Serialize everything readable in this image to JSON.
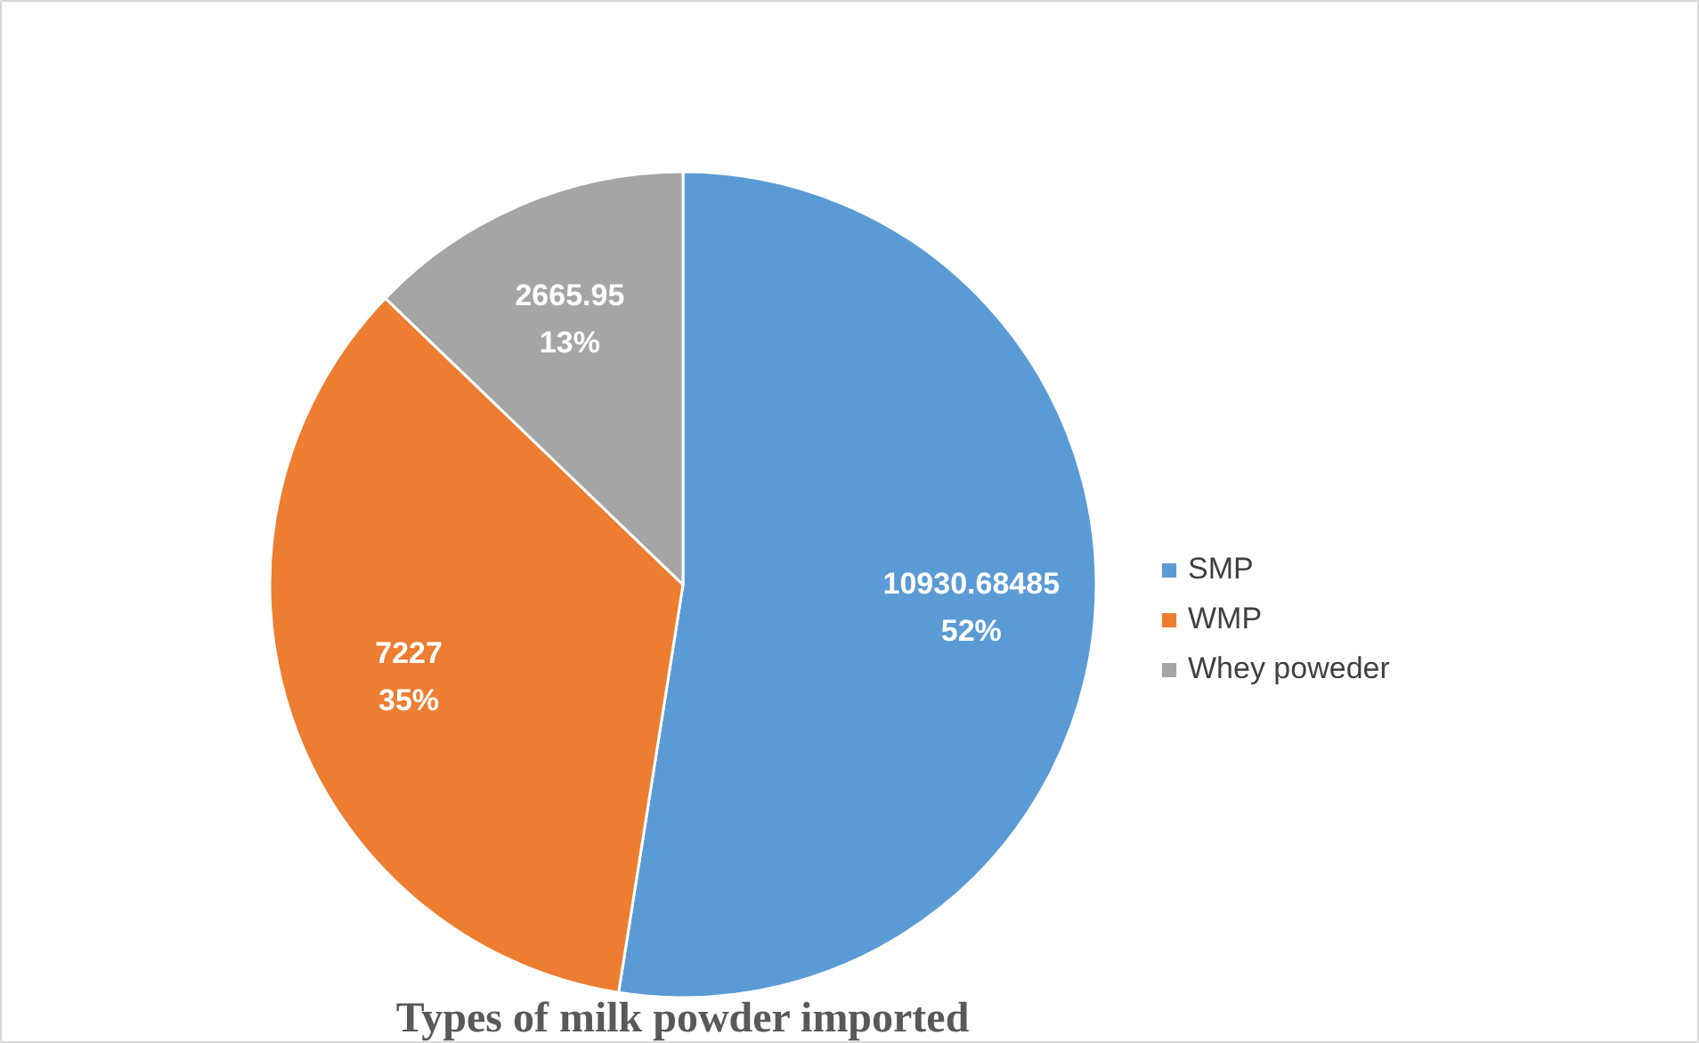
{
  "chart_data": {
    "type": "pie",
    "title": "Types of milk powder imported",
    "categories": [
      "SMP",
      "WMP",
      "Whey poweder"
    ],
    "values": [
      10930.68485,
      7227,
      2665.95
    ],
    "colors": [
      "#5b9bd5",
      "#ed7d31",
      "#a5a5a5"
    ],
    "value_labels": [
      "10930.68485\n52%",
      "7227\n35%",
      "2665.95\n13%"
    ],
    "legend": "right"
  }
}
